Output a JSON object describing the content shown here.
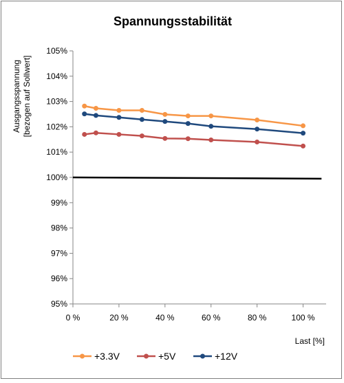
{
  "chart_data": {
    "type": "line",
    "title": "Spannungsstabilität",
    "xlabel": "Last [%]",
    "ylabel_line1": "Ausgangsspannung",
    "ylabel_line2": "[bezogen auf Sollwert]",
    "xlim": [
      0,
      110
    ],
    "ylim": [
      95,
      105
    ],
    "x_ticks": [
      0,
      20,
      40,
      60,
      80,
      100
    ],
    "x_tick_labels": [
      "0 %",
      "20 %",
      "40 %",
      "60 %",
      "80 %",
      "100 %"
    ],
    "y_ticks": [
      95,
      96,
      97,
      98,
      99,
      100,
      101,
      102,
      103,
      104,
      105
    ],
    "y_tick_labels": [
      "95%",
      "96%",
      "97%",
      "98%",
      "99%",
      "100%",
      "101%",
      "102%",
      "103%",
      "104%",
      "105%"
    ],
    "grid": false,
    "legend_position": "bottom",
    "reference_line": {
      "y_start": 100.0,
      "y_end": 99.95,
      "color": "#000000"
    },
    "x": [
      5,
      10,
      20,
      30,
      40,
      50,
      60,
      80,
      100
    ],
    "series": [
      {
        "name": "+3.3V",
        "color": "#f79646",
        "values": [
          102.82,
          102.73,
          102.65,
          102.65,
          102.49,
          102.43,
          102.43,
          102.27,
          102.04
        ]
      },
      {
        "name": "+5V",
        "color": "#c0504d",
        "values": [
          101.7,
          101.76,
          101.7,
          101.64,
          101.54,
          101.53,
          101.48,
          101.4,
          101.24
        ]
      },
      {
        "name": "+12V",
        "color": "#1f497d",
        "values": [
          102.51,
          102.45,
          102.37,
          102.29,
          102.21,
          102.13,
          102.02,
          101.91,
          101.75
        ]
      }
    ]
  }
}
